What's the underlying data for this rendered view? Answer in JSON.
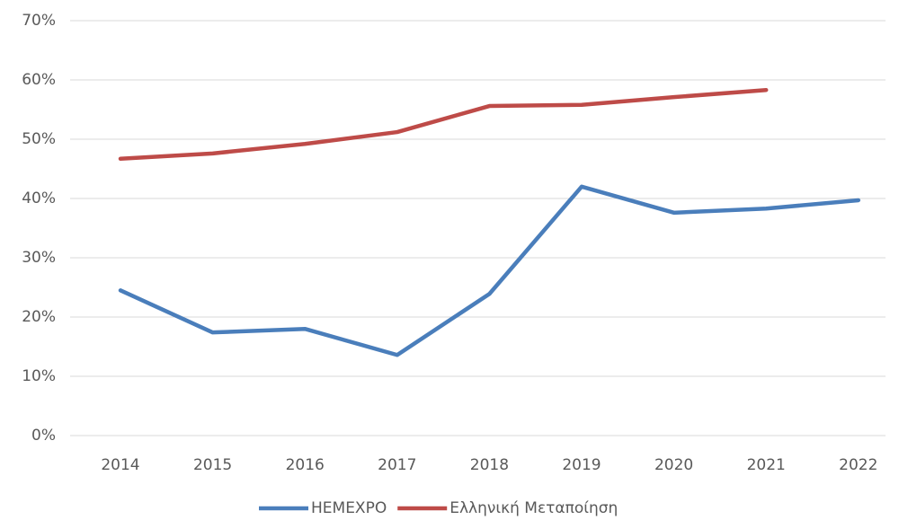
{
  "chart_data": {
    "type": "line",
    "categories": [
      "2014",
      "2015",
      "2016",
      "2017",
      "2018",
      "2019",
      "2020",
      "2021",
      "2022"
    ],
    "series": [
      {
        "name": "HEMEXPO",
        "color": "#4a7ebb",
        "values": [
          24.5,
          17.4,
          18.0,
          13.6,
          23.9,
          42.0,
          37.6,
          38.3,
          39.7
        ]
      },
      {
        "name": "Ελληνική Μεταποίηση",
        "color": "#be4b48",
        "values": [
          46.7,
          47.6,
          49.2,
          51.2,
          55.6,
          55.8,
          57.1,
          58.3,
          null
        ]
      }
    ],
    "ylim": [
      0,
      70
    ],
    "yticks": [
      {
        "value": 0,
        "label": "0%"
      },
      {
        "value": 10,
        "label": "10%"
      },
      {
        "value": 20,
        "label": "20%"
      },
      {
        "value": 30,
        "label": "30%"
      },
      {
        "value": 40,
        "label": "40%"
      },
      {
        "value": 50,
        "label": "50%"
      },
      {
        "value": 60,
        "label": "60%"
      },
      {
        "value": 70,
        "label": "70%"
      }
    ],
    "grid": true,
    "legend": "bottom"
  }
}
